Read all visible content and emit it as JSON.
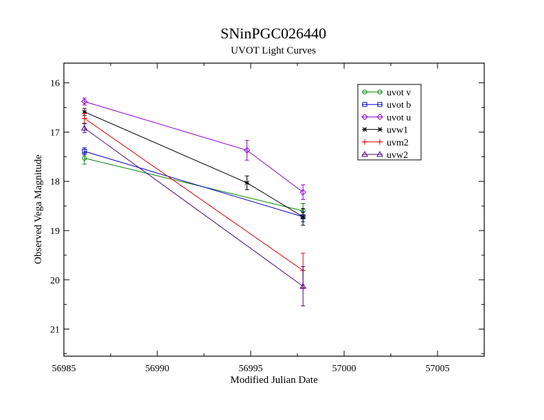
{
  "chart_data": {
    "type": "line",
    "title": "SNinPGC026440",
    "subtitle": "UVOT Light Curves",
    "xlabel": "Modified Julian Date",
    "ylabel": "Observed Vega Magnitude",
    "xlim": [
      56985,
      57007.5
    ],
    "ylim": [
      15.6,
      21.55
    ],
    "y_inverted": true,
    "x_ticks": [
      56985,
      56990,
      56995,
      57000,
      57005
    ],
    "y_ticks": [
      16,
      17,
      18,
      19,
      20,
      21
    ],
    "grid": false,
    "legend_position": "top-right",
    "series": [
      {
        "name": "uvot v",
        "color": "#008000",
        "marker": "circle",
        "x": [
          56986.1,
          56997.8
        ],
        "y": [
          17.53,
          18.6
        ],
        "err": [
          0.12,
          0.15
        ]
      },
      {
        "name": "uvot b",
        "color": "#0000cc",
        "marker": "square",
        "x": [
          56986.1,
          56997.8
        ],
        "y": [
          17.39,
          18.72
        ],
        "err": [
          0.07,
          0.1
        ]
      },
      {
        "name": "uvot u",
        "color": "#9400d3",
        "marker": "diamond",
        "x": [
          56986.1,
          56994.8,
          56997.8
        ],
        "y": [
          16.38,
          17.37,
          18.22
        ],
        "err": [
          0.07,
          0.2,
          0.15
        ]
      },
      {
        "name": "uvw1",
        "color": "#000000",
        "marker": "star",
        "x": [
          56986.1,
          56994.8,
          56997.8
        ],
        "y": [
          16.59,
          18.03,
          18.72
        ],
        "err": [
          0.07,
          0.14,
          0.17
        ]
      },
      {
        "name": "uvm2",
        "color": "#dd0000",
        "marker": "plus",
        "x": [
          56986.1,
          56997.8
        ],
        "y": [
          16.72,
          19.81
        ],
        "err": [
          0.1,
          0.35
        ]
      },
      {
        "name": "uvw2",
        "color": "#4b0082",
        "marker": "triangle",
        "x": [
          56986.1,
          56997.8
        ],
        "y": [
          16.92,
          20.13
        ],
        "err": [
          0.09,
          0.4
        ]
      }
    ]
  }
}
